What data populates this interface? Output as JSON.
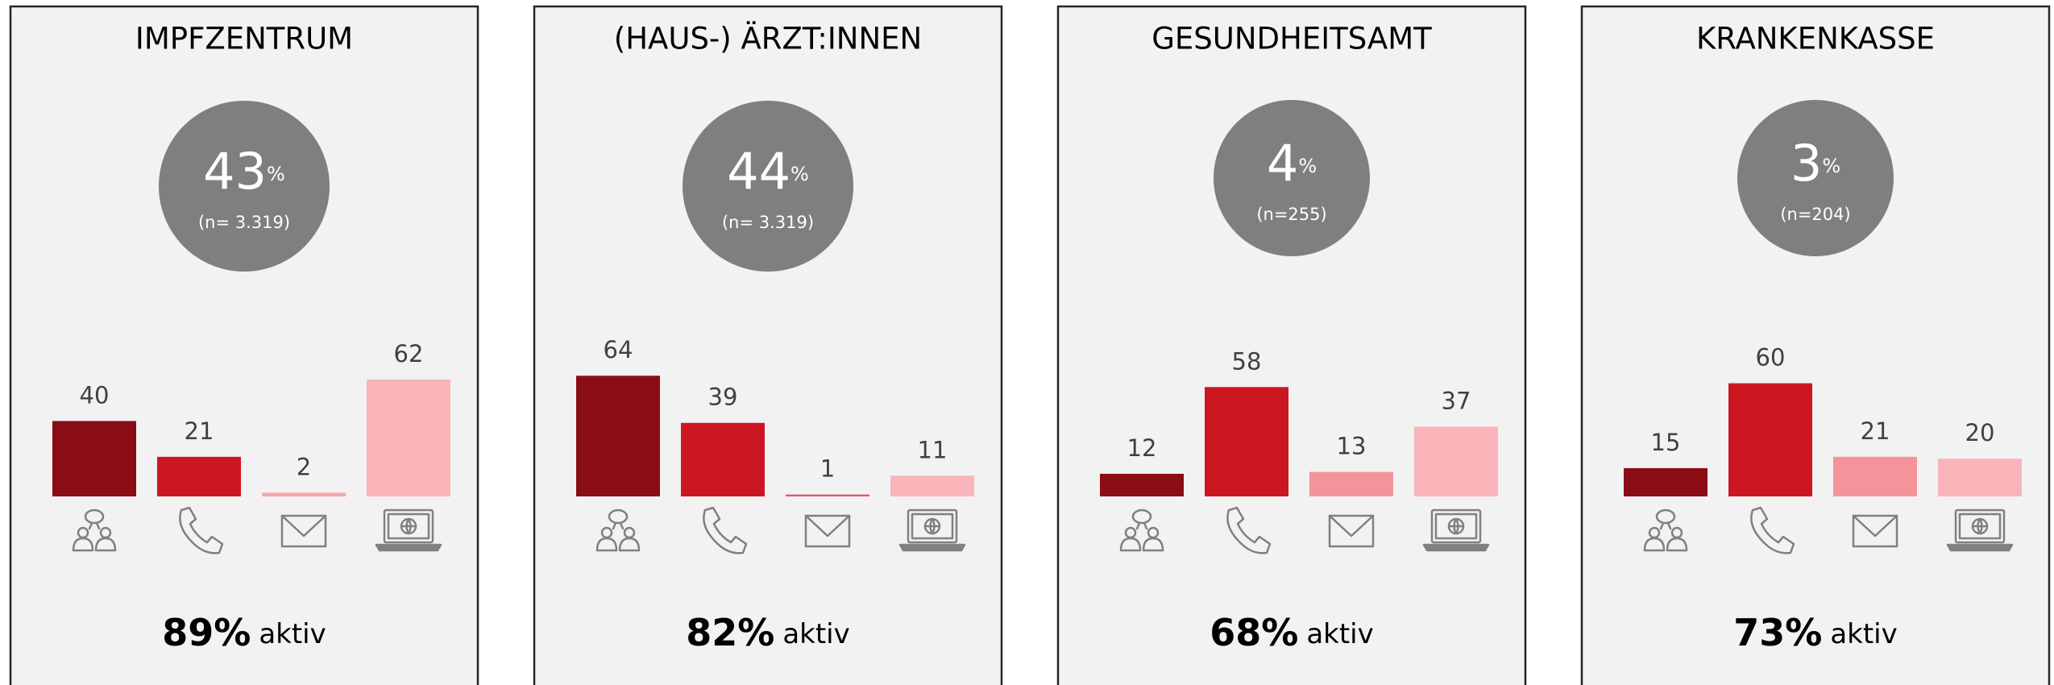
{
  "chart_data": [
    {
      "type": "bar",
      "title": "IMPFZENTRUM",
      "share": 43,
      "share_unit": "%",
      "sample": "(n= 3.319)",
      "values": [
        40,
        21,
        2,
        62
      ],
      "colors": [
        "#8a0c15",
        "#cc1722",
        "#f6a7ad",
        "#f8b4b9"
      ],
      "ylim": [
        0,
        100
      ],
      "active": "89%",
      "active_suffix": "aktiv"
    },
    {
      "type": "bar",
      "title": "(HAUS-) ÄRZT:INNEN",
      "share": 44,
      "share_unit": "%",
      "sample": "(n= 3.319)",
      "values": [
        64,
        39,
        1,
        11
      ],
      "colors": [
        "#8a0c15",
        "#cc1722",
        "#e05a63",
        "#f8b4b9"
      ],
      "ylim": [
        0,
        100
      ],
      "active": "82%",
      "active_suffix": "aktiv"
    },
    {
      "type": "bar",
      "title": "GESUNDHEITSAMT",
      "share": 4,
      "share_unit": "%",
      "sample": "(n=255)",
      "values": [
        12,
        58,
        13,
        37
      ],
      "colors": [
        "#8a0c15",
        "#cc1722",
        "#f4939a",
        "#f8b4b9"
      ],
      "ylim": [
        0,
        100
      ],
      "active": "68%",
      "active_suffix": "aktiv"
    },
    {
      "type": "bar",
      "title": "KRANKENKASSE",
      "share": 3,
      "share_unit": "%",
      "sample": "(n=204)",
      "values": [
        15,
        60,
        21,
        20
      ],
      "colors": [
        "#8a0c15",
        "#cc1722",
        "#f4939a",
        "#f8b4b9"
      ],
      "ylim": [
        0,
        100
      ],
      "active": "73%",
      "active_suffix": "aktiv"
    }
  ]
}
